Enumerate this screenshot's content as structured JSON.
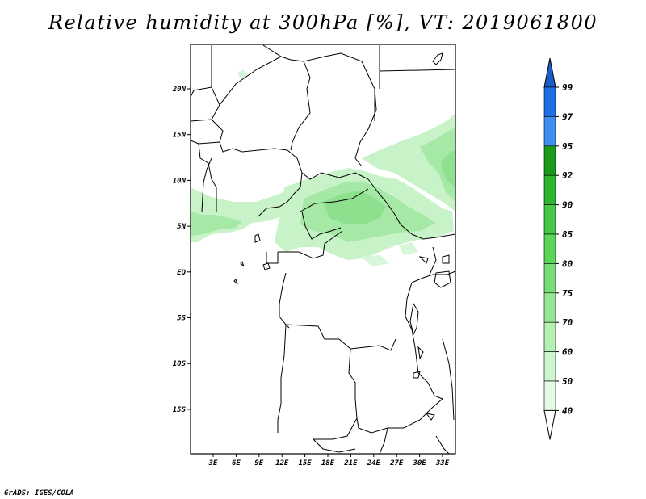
{
  "title": "Relative humidity at 300hPa [%], VT: 2019061800",
  "credit": "GrADS: IGES/COLA",
  "map": {
    "lat_labels": [
      "20N",
      "15N",
      "10N",
      "5N",
      "EQ",
      "5S",
      "10S",
      "15S"
    ],
    "lon_labels": [
      "3E",
      "6E",
      "9E",
      "12E",
      "15E",
      "18E",
      "21E",
      "24E",
      "27E",
      "30E",
      "33E"
    ],
    "lat_range": [
      -20,
      24.5
    ],
    "lon_range": [
      0,
      35
    ]
  },
  "colorbar": {
    "levels": [
      "99",
      "97",
      "95",
      "92",
      "90",
      "85",
      "80",
      "75",
      "70",
      "60",
      "50",
      "40"
    ],
    "colors": [
      "#1e6ee6",
      "#3e8ef0",
      "#1a9a1a",
      "#2fb42f",
      "#45c845",
      "#5ad65a",
      "#78dc78",
      "#96e696",
      "#b4f0b4",
      "#cdf5cd",
      "#e6fae6"
    ],
    "top_arrow_color": "#1c5cc8",
    "bottom_arrow_color": "#ffffff"
  }
}
